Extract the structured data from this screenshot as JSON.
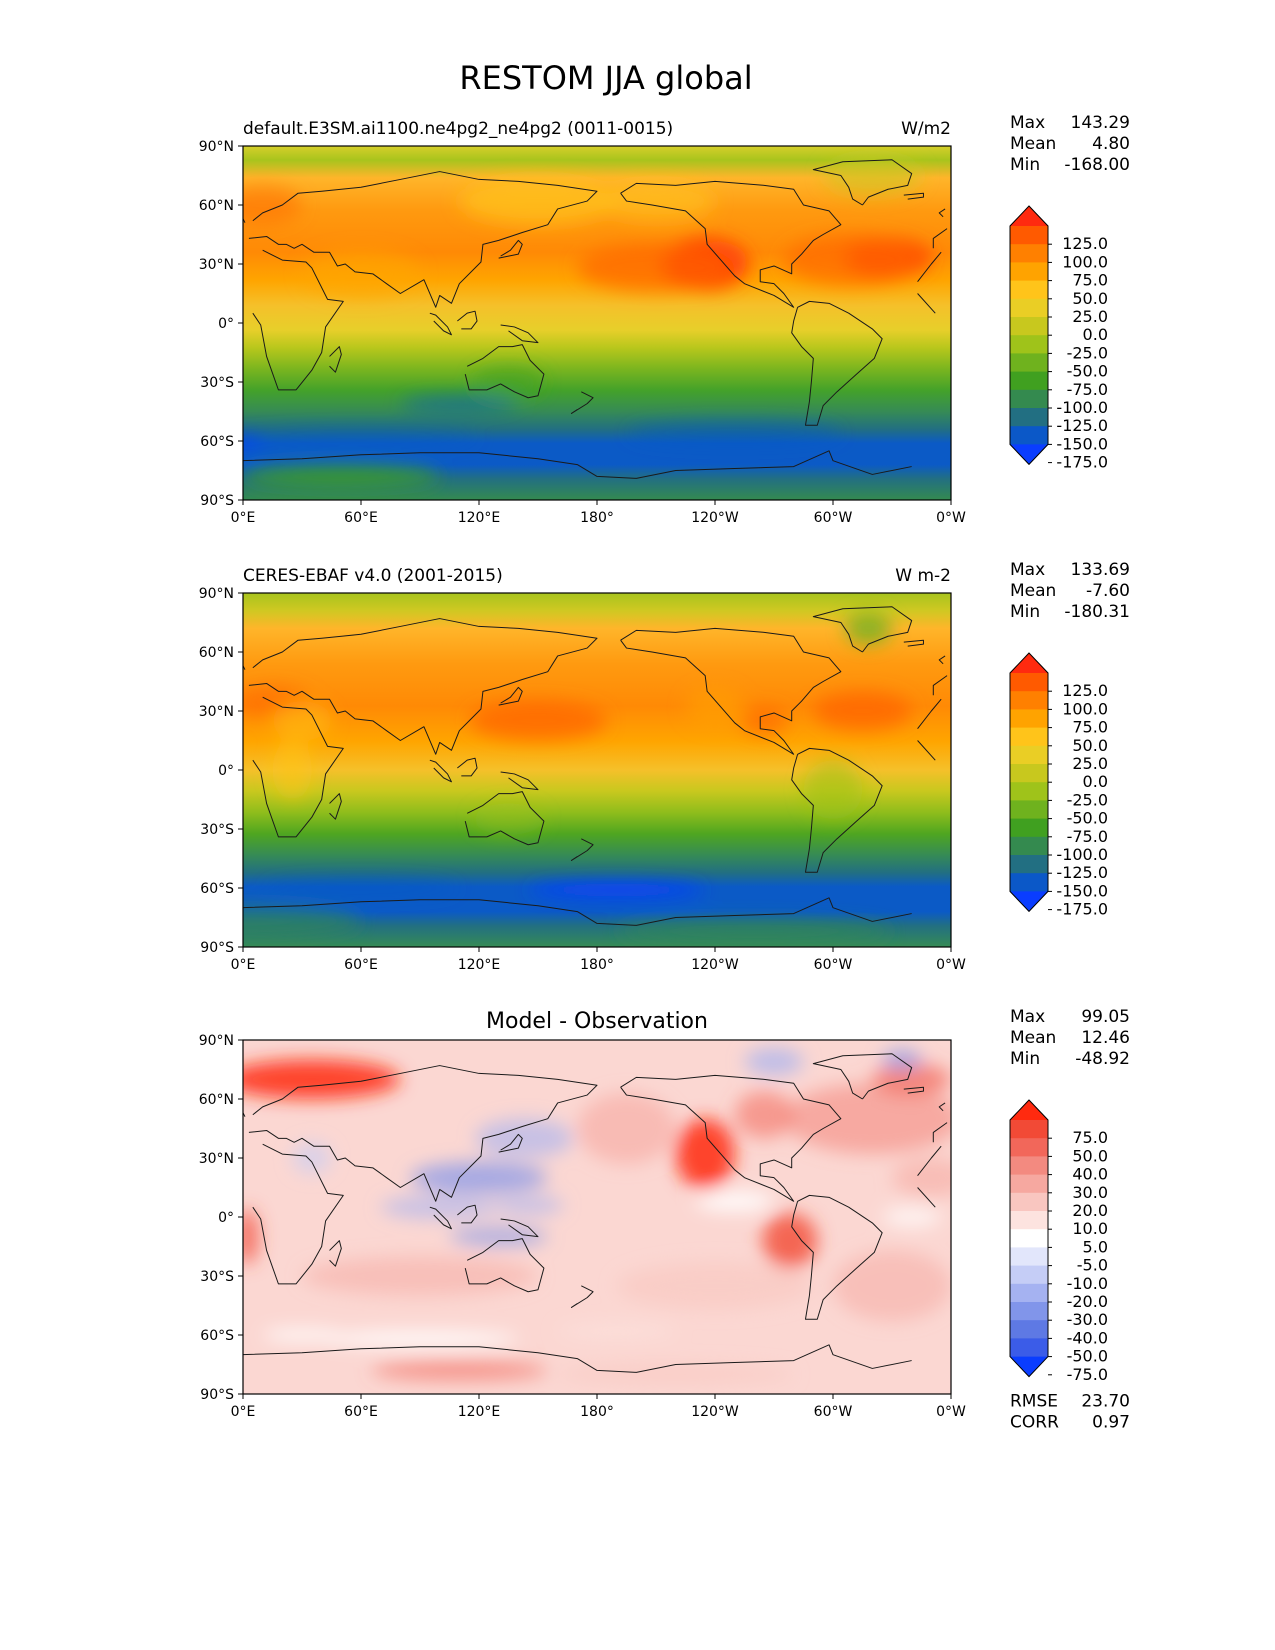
{
  "title": "RESTOM JJA global",
  "x_ticks": [
    "0°E",
    "60°E",
    "120°E",
    "180°",
    "120°W",
    "60°W",
    "0°W"
  ],
  "y_ticks": [
    "90°N",
    "60°N",
    "30°N",
    "0°",
    "30°S",
    "60°S",
    "90°S"
  ],
  "stat_labels": {
    "max": "Max",
    "mean": "Mean",
    "min": "Min",
    "rmse": "RMSE",
    "corr": "CORR"
  },
  "panels": [
    {
      "left_title": "default.E3SM.ai1100.ne4pg2_ne4pg2 (0011-0015)",
      "center_title": "",
      "units": "W/m2",
      "stats": {
        "max": "143.29",
        "mean": "4.80",
        "min": "-168.00"
      },
      "colorbar": {
        "labels": [
          "125.0",
          "100.0",
          "75.0",
          "50.0",
          "25.0",
          "0.0",
          "-25.0",
          "-50.0",
          "-75.0",
          "-100.0",
          "-125.0",
          "-150.0",
          "-175.0"
        ],
        "colors": [
          "#ff2a0f",
          "#ff5a00",
          "#ff8000",
          "#ffa300",
          "#ffc41a",
          "#eace25",
          "#c8c81e",
          "#9fc31a",
          "#6fb21e",
          "#40a020",
          "#348a4f",
          "#226f82",
          "#0b58c8",
          "#0a3dff"
        ]
      }
    },
    {
      "left_title": "CERES-EBAF v4.0 (2001-2015)",
      "center_title": "",
      "units": "W m-2",
      "stats": {
        "max": "133.69",
        "mean": "-7.60",
        "min": "-180.31"
      },
      "colorbar": {
        "labels": [
          "125.0",
          "100.0",
          "75.0",
          "50.0",
          "25.0",
          "0.0",
          "-25.0",
          "-50.0",
          "-75.0",
          "-100.0",
          "-125.0",
          "-150.0",
          "-175.0"
        ],
        "colors": [
          "#ff2a0f",
          "#ff5a00",
          "#ff8000",
          "#ffa300",
          "#ffc41a",
          "#eace25",
          "#c8c81e",
          "#9fc31a",
          "#6fb21e",
          "#40a020",
          "#348a4f",
          "#226f82",
          "#0b58c8",
          "#0a3dff"
        ]
      }
    },
    {
      "left_title": "",
      "center_title": "Model - Observation",
      "units": "",
      "stats": {
        "max": "99.05",
        "mean": "12.46",
        "min": "-48.92"
      },
      "metrics": {
        "rmse": "23.70",
        "corr": "0.97"
      },
      "colorbar": {
        "labels": [
          "75.0",
          "50.0",
          "40.0",
          "30.0",
          "20.0",
          "10.0",
          "5.0",
          "-5.0",
          "-10.0",
          "-20.0",
          "-30.0",
          "-40.0",
          "-50.0",
          "-75.0"
        ],
        "colors": [
          "#ff2a0f",
          "#f24a36",
          "#f2675a",
          "#f38a80",
          "#f6a8a0",
          "#f9c6c0",
          "#fde3df",
          "#ffffff",
          "#e2e6fb",
          "#c5cdf6",
          "#a5b2f1",
          "#8195ea",
          "#5e79e4",
          "#3b5ce8",
          "#0a3dff"
        ]
      }
    }
  ]
}
